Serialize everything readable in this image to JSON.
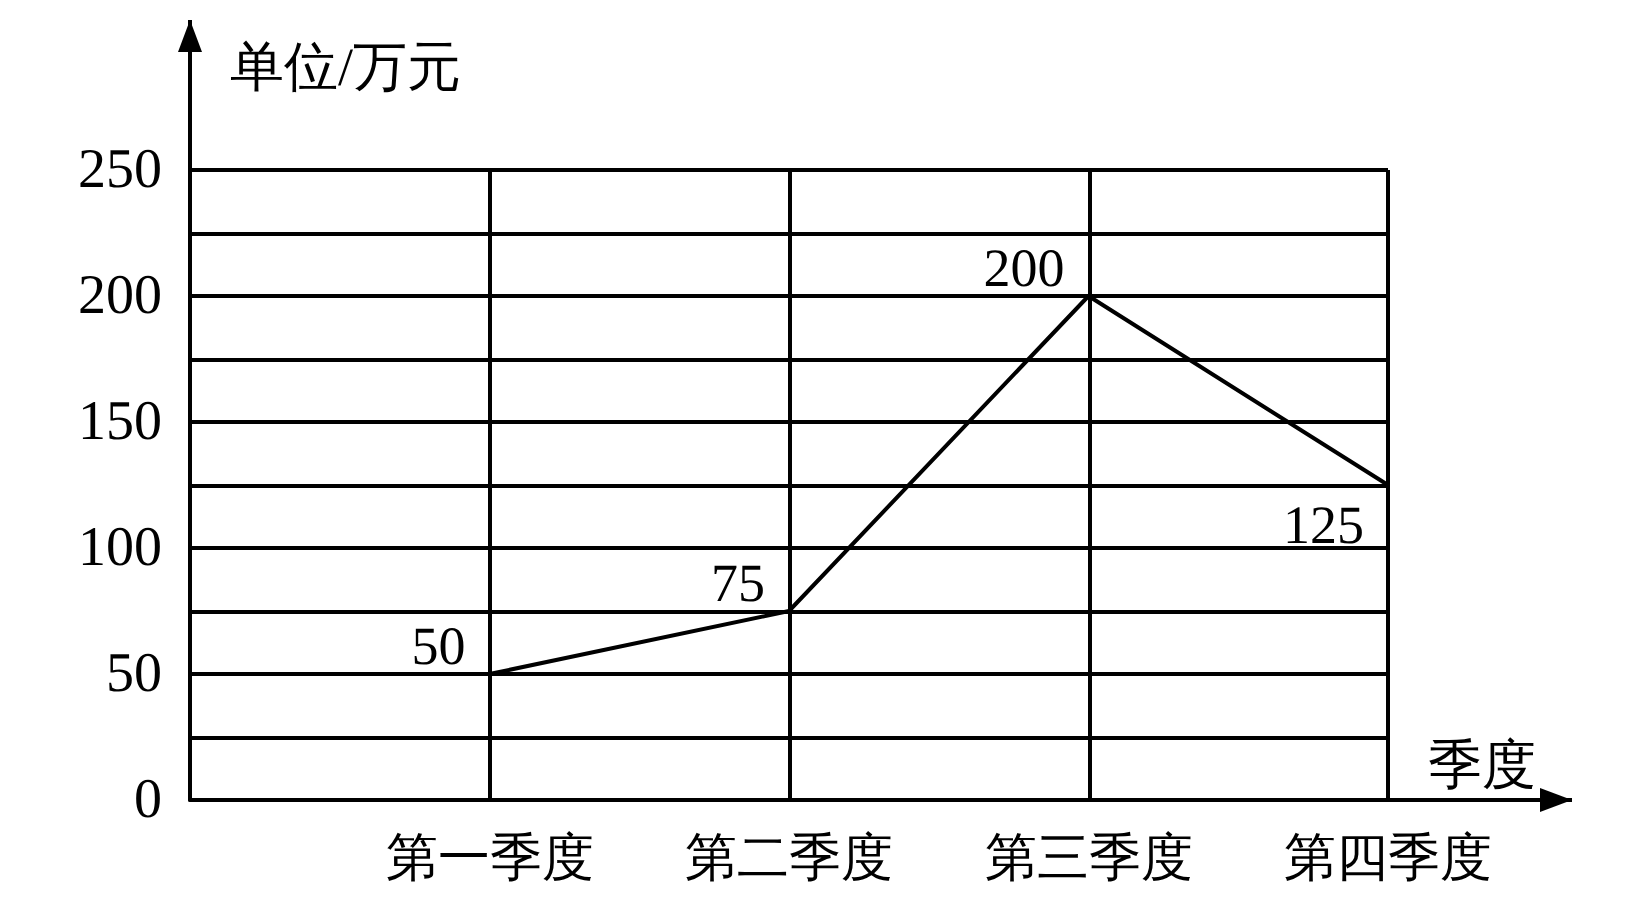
{
  "chart_data": {
    "type": "line",
    "xlabel": "季度",
    "ylabel": "单位/万元",
    "categories": [
      "第一季度",
      "第二季度",
      "第三季度",
      "第四季度"
    ],
    "values": [
      50,
      75,
      200,
      125
    ],
    "color": "#000000",
    "ylim": [
      0,
      250
    ],
    "yticks": [
      0,
      {
        "value": 25,
        "label": null
      },
      50,
      {
        "value": 75,
        "label": null
      },
      100,
      {
        "value": 125,
        "label": null
      },
      150,
      {
        "value": 175,
        "label": null
      },
      200,
      {
        "value": 225,
        "label": null
      },
      250
    ],
    "grid": true,
    "data_labels": true,
    "marker": "none",
    "line_style": "solid"
  }
}
